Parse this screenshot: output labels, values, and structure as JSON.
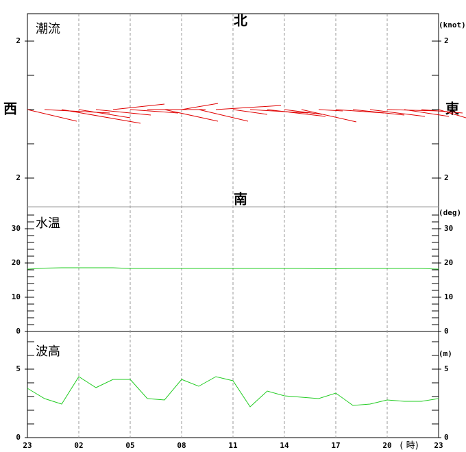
{
  "chart_data": [
    {
      "type": "stick",
      "title": "潮流",
      "unit": "(knot)",
      "north": "北",
      "south": "南",
      "west": "西",
      "east": "東",
      "color": "#e00000",
      "u": [
        1.44,
        1.9,
        2.3,
        1.5,
        1.6,
        1.5,
        1.4,
        1.7,
        1.56,
        1.06,
        1.44,
        1.9,
        1.0,
        1.7,
        1.7,
        1.1,
        1.6,
        0.7,
        1.4,
        1.5,
        1.6,
        1.5,
        1.3,
        1.2,
        0.8
      ],
      "v": [
        -0.34,
        -0.1,
        -0.4,
        -0.24,
        -0.16,
        0.16,
        -0.1,
        0,
        -0.34,
        0.18,
        -0.34,
        0.12,
        -0.14,
        -0.1,
        -0.2,
        -0.14,
        -0.36,
        -0.04,
        -0.1,
        -0.16,
        -0.2,
        -0.04,
        -0.2,
        -0.1,
        -0.24
      ],
      "ylim": [
        -2.84,
        2.8
      ],
      "yticks": [
        {
          "value": 2,
          "label": "2"
        },
        {
          "value": -2,
          "label": "2"
        }
      ],
      "yminor": [
        1,
        0,
        -1
      ]
    },
    {
      "type": "line",
      "title": "水温",
      "unit": "(deg)",
      "color": "#22cc22",
      "values": [
        18.2,
        18.5,
        18.6,
        18.6,
        18.6,
        18.6,
        18.4,
        18.4,
        18.4,
        18.4,
        18.4,
        18.4,
        18.4,
        18.4,
        18.4,
        18.4,
        18.4,
        18.3,
        18.3,
        18.4,
        18.4,
        18.4,
        18.4,
        18.4,
        18.2
      ],
      "ylim": [
        0,
        36.4
      ],
      "yticks": [
        0,
        10,
        20,
        30
      ],
      "yminor": [
        2,
        4,
        6,
        8,
        12,
        14,
        16,
        18,
        22,
        24,
        26,
        28,
        32,
        34
      ]
    },
    {
      "type": "line",
      "title": "波高",
      "unit": "(m)",
      "color": "#22cc22",
      "xlabel": "( 時)",
      "categories": [
        "23",
        null,
        null,
        "02",
        null,
        null,
        "05",
        null,
        null,
        "08",
        null,
        null,
        "11",
        null,
        null,
        "14",
        null,
        null,
        "17",
        null,
        null,
        "20",
        null,
        null,
        "23"
      ],
      "values": [
        3.6,
        2.85,
        2.45,
        4.45,
        3.65,
        4.25,
        4.25,
        2.85,
        2.75,
        4.25,
        3.75,
        4.45,
        4.15,
        2.25,
        3.4,
        3.05,
        2.95,
        2.85,
        3.25,
        2.35,
        2.45,
        2.75,
        2.65,
        2.65,
        2.85
      ],
      "ylim": [
        0,
        7.75
      ],
      "yticks": [
        0,
        5
      ],
      "yminor": [
        1,
        2,
        3,
        4,
        6,
        7
      ]
    }
  ]
}
